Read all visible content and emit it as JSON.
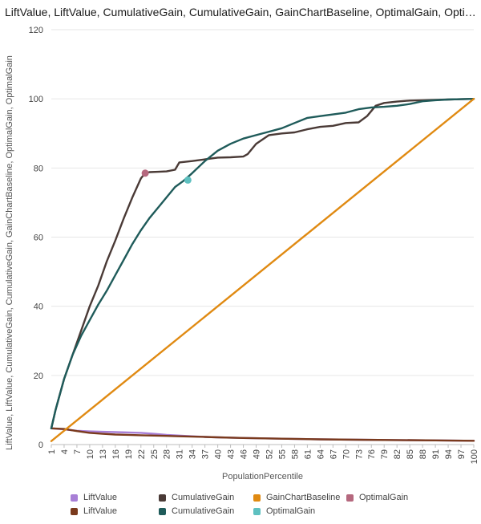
{
  "chart_data": {
    "type": "line",
    "title": "LiftValue, LiftValue, CumulativeGain, CumulativeGain, GainChartBaseline, OptimalGain, OptimalGai...",
    "xlabel": "PopulationPercentile",
    "ylabel": "LiftValue, LiftValue, CumulativeGain, CumulativeGain, GainChartBaseline, OptimalGain, OptimalGain",
    "xlim": [
      1,
      100
    ],
    "ylim": [
      0,
      120
    ],
    "x_ticks": [
      1,
      4,
      7,
      10,
      13,
      16,
      19,
      22,
      25,
      28,
      31,
      34,
      37,
      40,
      43,
      46,
      49,
      52,
      55,
      58,
      61,
      64,
      67,
      70,
      73,
      76,
      79,
      82,
      85,
      88,
      91,
      94,
      97,
      100
    ],
    "y_ticks": [
      0,
      20,
      40,
      60,
      80,
      100,
      120
    ],
    "grid": true,
    "legend_position": "bottom",
    "series": [
      {
        "name": "LiftValue",
        "color": "#a87fd6",
        "kind": "line",
        "x": [
          1,
          4,
          7,
          10,
          13,
          16,
          19,
          22,
          25,
          28,
          31,
          34,
          37,
          40,
          46,
          55,
          64,
          73,
          82,
          91,
          100
        ],
        "y": [
          4.7,
          4.4,
          4.0,
          3.8,
          3.7,
          3.6,
          3.5,
          3.4,
          3.1,
          2.8,
          2.6,
          2.4,
          2.2,
          2.1,
          1.9,
          1.7,
          1.5,
          1.4,
          1.3,
          1.2,
          1.1
        ]
      },
      {
        "name": "LiftValue",
        "color": "#7a3a1d",
        "kind": "line",
        "x": [
          1,
          4,
          7,
          10,
          13,
          16,
          19,
          22,
          25,
          28,
          31,
          34,
          37,
          40,
          46,
          55,
          64,
          73,
          82,
          91,
          100
        ],
        "y": [
          4.7,
          4.5,
          3.9,
          3.4,
          3.1,
          2.9,
          2.8,
          2.7,
          2.6,
          2.5,
          2.4,
          2.3,
          2.2,
          2.1,
          1.9,
          1.7,
          1.5,
          1.4,
          1.3,
          1.2,
          1.1
        ]
      },
      {
        "name": "CumulativeGain",
        "color": "#4a3a36",
        "kind": "line",
        "x": [
          1,
          2,
          4,
          6,
          8,
          10,
          12,
          14,
          16,
          18,
          20,
          22,
          23,
          24,
          26,
          28,
          30,
          31,
          34,
          37,
          40,
          43,
          46,
          47,
          49,
          52,
          55,
          58,
          61,
          64,
          67,
          70,
          73,
          75,
          77,
          79,
          82,
          85,
          88,
          91,
          94,
          97,
          100
        ],
        "y": [
          4.7,
          10.0,
          19.0,
          26.0,
          33.0,
          40.0,
          46.0,
          53.0,
          59.0,
          65.5,
          71.5,
          77.0,
          78.5,
          78.8,
          78.9,
          79.0,
          79.5,
          81.6,
          82.0,
          82.5,
          83.0,
          83.1,
          83.3,
          84.0,
          87.0,
          89.5,
          90.0,
          90.3,
          91.2,
          91.9,
          92.2,
          93.0,
          93.2,
          95.0,
          98.0,
          98.8,
          99.2,
          99.5,
          99.6,
          99.7,
          99.8,
          99.9,
          100.0
        ]
      },
      {
        "name": "CumulativeGain",
        "color": "#1f5b5a",
        "kind": "line",
        "x": [
          1,
          2,
          4,
          6,
          8,
          10,
          12,
          14,
          16,
          18,
          20,
          22,
          24,
          26,
          28,
          30,
          32,
          34,
          37,
          40,
          43,
          46,
          49,
          52,
          55,
          58,
          61,
          64,
          67,
          70,
          73,
          76,
          79,
          82,
          85,
          88,
          91,
          94,
          97,
          100
        ],
        "y": [
          4.7,
          10.0,
          19.0,
          26.0,
          31.5,
          36.0,
          40.5,
          44.5,
          49.0,
          53.5,
          58.0,
          62.0,
          65.5,
          68.5,
          71.5,
          74.5,
          76.3,
          78.5,
          82.0,
          85.0,
          87.0,
          88.5,
          89.5,
          90.5,
          91.5,
          93.0,
          94.5,
          95.0,
          95.5,
          96.0,
          97.0,
          97.5,
          97.7,
          98.0,
          98.5,
          99.3,
          99.6,
          99.8,
          99.9,
          100.0
        ]
      },
      {
        "name": "GainChartBaseline",
        "color": "#e08a12",
        "kind": "line",
        "x": [
          1,
          100
        ],
        "y": [
          1,
          100
        ]
      },
      {
        "name": "OptimalGain",
        "color": "#b5687e",
        "kind": "point",
        "x": [
          23
        ],
        "y": [
          78.5
        ]
      },
      {
        "name": "OptimalGain",
        "color": "#5ec0c0",
        "kind": "point",
        "x": [
          33
        ],
        "y": [
          76.5
        ]
      }
    ]
  },
  "legend": [
    {
      "label": "LiftValue",
      "color": "#a87fd6"
    },
    {
      "label": "LiftValue",
      "color": "#7a3a1d"
    },
    {
      "label": "CumulativeGain",
      "color": "#4a3a36"
    },
    {
      "label": "CumulativeGain",
      "color": "#1f5b5a"
    },
    {
      "label": "GainChartBaseline",
      "color": "#e08a12"
    },
    {
      "label": "OptimalGain",
      "color": "#b5687e"
    },
    {
      "label": "OptimalGain",
      "color": "#5ec0c0"
    }
  ]
}
